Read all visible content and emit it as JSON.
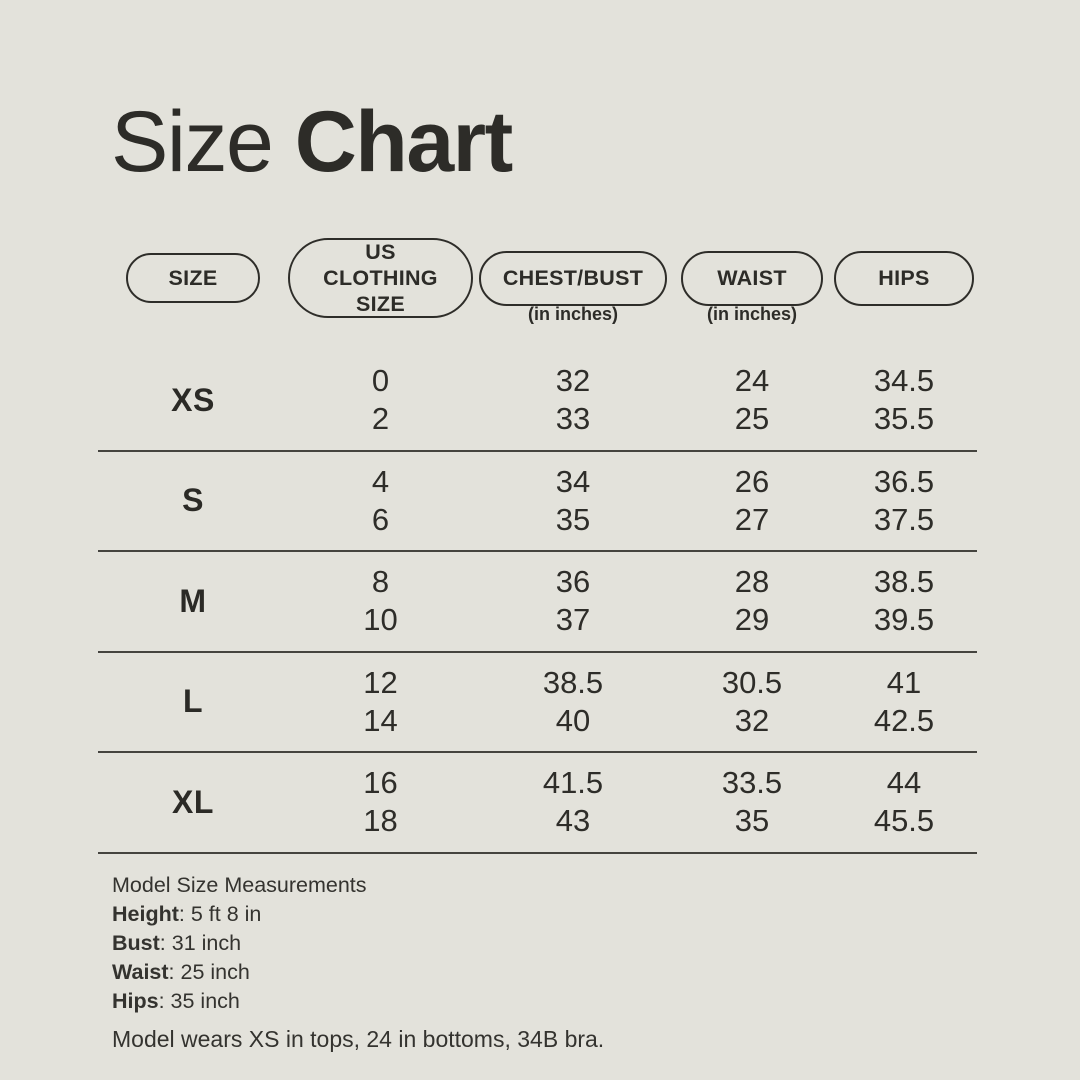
{
  "page": {
    "title_regular": "Size",
    "title_bold": "Chart"
  },
  "colors": {
    "background": "#e3e2db",
    "text": "#2e2d29",
    "pill_border": "#2e2d29",
    "row_line": "#45443f"
  },
  "table": {
    "columns": [
      {
        "label": "SIZE",
        "subtitle": ""
      },
      {
        "label": "US CLOTHING SIZE",
        "subtitle": ""
      },
      {
        "label": "CHEST/BUST",
        "subtitle": "(in inches)"
      },
      {
        "label": "WAIST",
        "subtitle": "(in inches)"
      },
      {
        "label": "HIPS",
        "subtitle": ""
      }
    ],
    "rows": [
      {
        "size": "XS",
        "us": [
          "0",
          "2"
        ],
        "chest": [
          "32",
          "33"
        ],
        "waist": [
          "24",
          "25"
        ],
        "hips": [
          "34.5",
          "35.5"
        ]
      },
      {
        "size": "S",
        "us": [
          "4",
          "6"
        ],
        "chest": [
          "34",
          "35"
        ],
        "waist": [
          "26",
          "27"
        ],
        "hips": [
          "36.5",
          "37.5"
        ]
      },
      {
        "size": "M",
        "us": [
          "8",
          "10"
        ],
        "chest": [
          "36",
          "37"
        ],
        "waist": [
          "28",
          "29"
        ],
        "hips": [
          "38.5",
          "39.5"
        ]
      },
      {
        "size": "L",
        "us": [
          "12",
          "14"
        ],
        "chest": [
          "38.5",
          "40"
        ],
        "waist": [
          "30.5",
          "32"
        ],
        "hips": [
          "41",
          "42.5"
        ]
      },
      {
        "size": "XL",
        "us": [
          "16",
          "18"
        ],
        "chest": [
          "41.5",
          "43"
        ],
        "waist": [
          "33.5",
          "35"
        ],
        "hips": [
          "44",
          "45.5"
        ]
      }
    ]
  },
  "footer": {
    "heading": "Model Size Measurements",
    "separator": ": ",
    "measurements": [
      {
        "label": "Height",
        "value": "5 ft 8 in"
      },
      {
        "label": "Bust",
        "value": "31 inch"
      },
      {
        "label": "Waist",
        "value": "25 inch"
      },
      {
        "label": "Hips",
        "value": "35 inch"
      }
    ],
    "note": "Model wears XS in tops, 24 in bottoms, 34B bra."
  }
}
